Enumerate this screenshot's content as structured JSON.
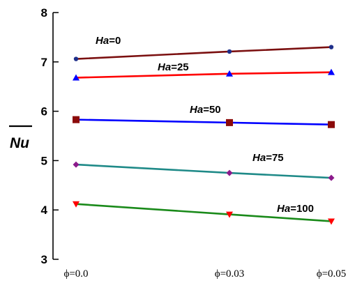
{
  "chart_data": {
    "type": "line",
    "categories": [
      "ϕ=0.0",
      "ϕ=0.03",
      "ϕ=0.05"
    ],
    "x": [
      0.0,
      0.03,
      0.05
    ],
    "ylabel": "Nu",
    "ylim": [
      3,
      8
    ],
    "yticks": [
      "3",
      "4",
      "5",
      "6",
      "7",
      "8"
    ],
    "grid": false,
    "series": [
      {
        "name": "Ha=0",
        "name_italic": "Ha",
        "name_rest": "=0",
        "values": [
          7.06,
          7.21,
          7.3
        ],
        "color": "#7b1010",
        "marker": "circle",
        "marker_color": "#1f2f8a"
      },
      {
        "name": "Ha=25",
        "name_italic": "Ha",
        "name_rest": "=25",
        "values": [
          6.68,
          6.76,
          6.79
        ],
        "color": "#ff0000",
        "marker": "triangle",
        "marker_color": "#0000ff"
      },
      {
        "name": "Ha=50",
        "name_italic": "Ha",
        "name_rest": "=50",
        "values": [
          5.83,
          5.77,
          5.73
        ],
        "color": "#0000ff",
        "marker": "square",
        "marker_color": "#8b0a0a"
      },
      {
        "name": "Ha=75",
        "name_italic": "Ha",
        "name_rest": "=75",
        "values": [
          4.92,
          4.75,
          4.65
        ],
        "color": "#1f8a88",
        "marker": "diamond",
        "marker_color": "#8b1a8b"
      },
      {
        "name": "Ha=100",
        "name_italic": "Ha",
        "name_rest": "=100",
        "values": [
          4.12,
          3.91,
          3.77
        ],
        "color": "#1a8a1a",
        "marker": "tri-down",
        "marker_color": "#ff0000"
      }
    ]
  }
}
